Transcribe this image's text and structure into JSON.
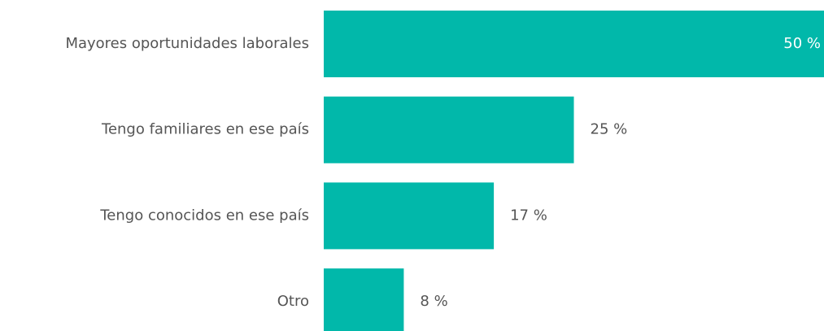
{
  "chart_data": {
    "type": "hbar",
    "categories": [
      "Mayores oportunidades laborales",
      "Tengo familiares en ese país",
      "Tengo conocidos en ese país",
      "Otro"
    ],
    "values": [
      50,
      25,
      17,
      8
    ],
    "value_labels": [
      "50 %",
      "25 %",
      "17 %",
      "8 %"
    ],
    "color": "#01b8aa",
    "xlim": [
      0,
      50
    ]
  }
}
